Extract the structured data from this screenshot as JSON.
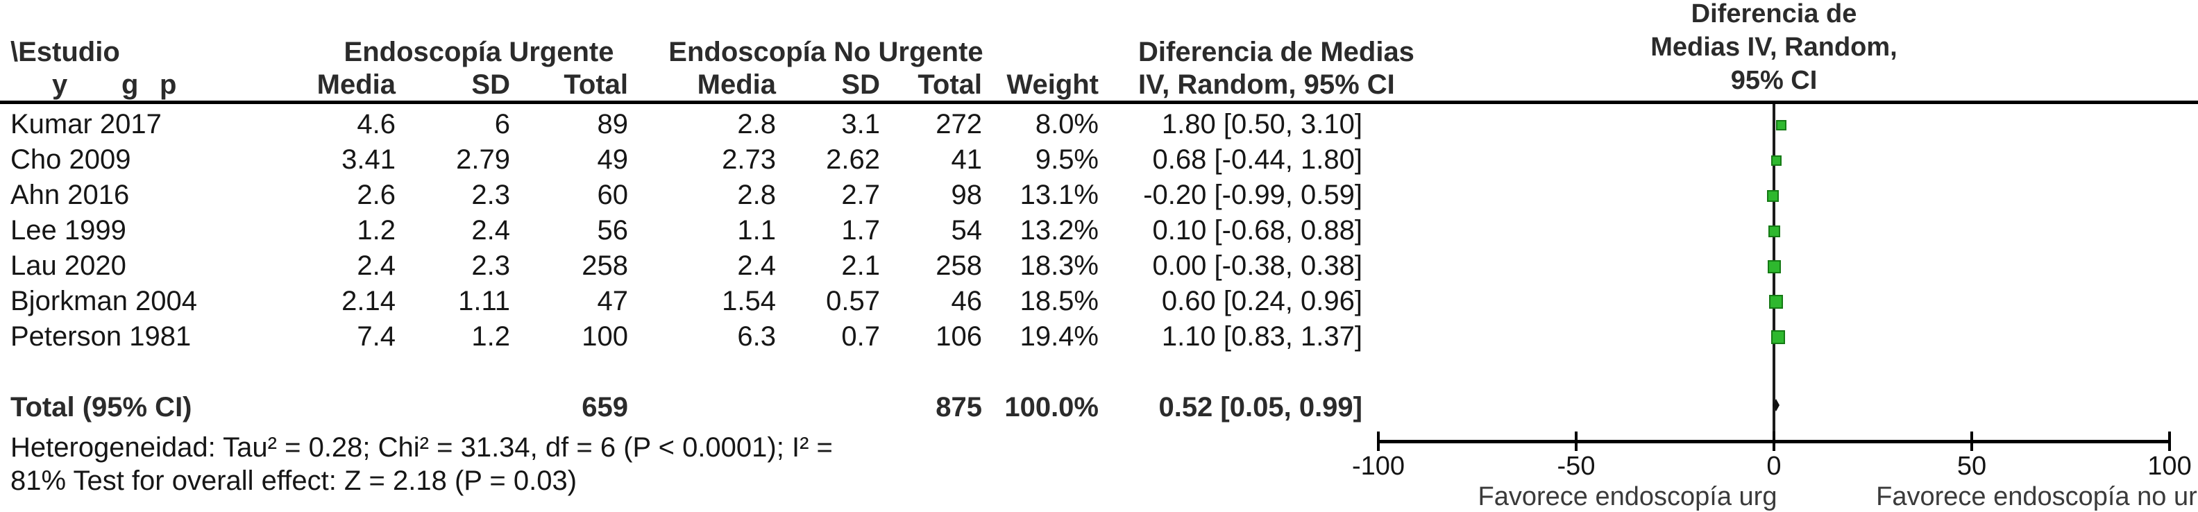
{
  "table": {
    "headers": {
      "estudio_line1": "\\Estudio",
      "estudio_sub_y": "y",
      "estudio_sub_g": "g",
      "estudio_sub_p": "p",
      "group_urgente": "Endoscopía Urgente",
      "group_no_urgente": "Endoscopía No Urgente",
      "media": "Media",
      "sd": "SD",
      "total": "Total",
      "weight": "Weight",
      "effect_line1": "Diferencia de Medias",
      "effect_line2": "IV, Random, 95% CI"
    },
    "rows": [
      {
        "study": "Kumar 2017",
        "urg_media": "4.6",
        "urg_sd": "6",
        "urg_total": "89",
        "no_media": "2.8",
        "no_sd": "3.1",
        "no_total": "272",
        "weight": "8.0%",
        "ci": "1.80 [0.50, 3.10]"
      },
      {
        "study": "Cho 2009",
        "urg_media": "3.41",
        "urg_sd": "2.79",
        "urg_total": "49",
        "no_media": "2.73",
        "no_sd": "2.62",
        "no_total": "41",
        "weight": "9.5%",
        "ci": "0.68 [-0.44, 1.80]"
      },
      {
        "study": "Ahn 2016",
        "urg_media": "2.6",
        "urg_sd": "2.3",
        "urg_total": "60",
        "no_media": "2.8",
        "no_sd": "2.7",
        "no_total": "98",
        "weight": "13.1%",
        "ci": "-0.20 [-0.99, 0.59]"
      },
      {
        "study": "Lee 1999",
        "urg_media": "1.2",
        "urg_sd": "2.4",
        "urg_total": "56",
        "no_media": "1.1",
        "no_sd": "1.7",
        "no_total": "54",
        "weight": "13.2%",
        "ci": "0.10 [-0.68, 0.88]"
      },
      {
        "study": "Lau 2020",
        "urg_media": "2.4",
        "urg_sd": "2.3",
        "urg_total": "258",
        "no_media": "2.4",
        "no_sd": "2.1",
        "no_total": "258",
        "weight": "18.3%",
        "ci": "0.00 [-0.38, 0.38]"
      },
      {
        "study": "Bjorkman 2004",
        "urg_media": "2.14",
        "urg_sd": "1.11",
        "urg_total": "47",
        "no_media": "1.54",
        "no_sd": "0.57",
        "no_total": "46",
        "weight": "18.5%",
        "ci": "0.60 [0.24, 0.96]"
      },
      {
        "study": "Peterson 1981",
        "urg_media": "7.4",
        "urg_sd": "1.2",
        "urg_total": "100",
        "no_media": "6.3",
        "no_sd": "0.7",
        "no_total": "106",
        "weight": "19.4%",
        "ci": "1.10 [0.83, 1.37]"
      }
    ],
    "total_row": {
      "label": "Total (95% CI)",
      "urg_total": "659",
      "no_total": "875",
      "weight": "100.0%",
      "ci": "0.52 [0.05, 0.99]"
    },
    "footnote_line1": "Heterogeneidad: Tau² = 0.28; Chi² = 31.34, df = 6 (P < 0.0001); I² =",
    "footnote_line2": "81% Test for overall effect: Z = 2.18 (P = 0.03)"
  },
  "plot": {
    "header_line1": "Diferencia de",
    "header_line2": "Medias IV, Random,",
    "header_line3": "95% CI",
    "favors_left": "Favorece endoscopía urg",
    "favors_right": "Favorece endoscopía no urg"
  },
  "chart_data": {
    "type": "forest",
    "title": "Diferencia de Medias IV, Random, 95% CI",
    "x_axis": {
      "min": -100,
      "max": 100,
      "ticks": [
        -100,
        -50,
        0,
        50,
        100
      ]
    },
    "studies": [
      {
        "name": "Kumar 2017",
        "md": 1.8,
        "ci_low": 0.5,
        "ci_high": 3.1,
        "weight_pct": 8.0
      },
      {
        "name": "Cho 2009",
        "md": 0.68,
        "ci_low": -0.44,
        "ci_high": 1.8,
        "weight_pct": 9.5
      },
      {
        "name": "Ahn 2016",
        "md": -0.2,
        "ci_low": -0.99,
        "ci_high": 0.59,
        "weight_pct": 13.1
      },
      {
        "name": "Lee 1999",
        "md": 0.1,
        "ci_low": -0.68,
        "ci_high": 0.88,
        "weight_pct": 13.2
      },
      {
        "name": "Lau 2020",
        "md": 0.0,
        "ci_low": -0.38,
        "ci_high": 0.38,
        "weight_pct": 18.3
      },
      {
        "name": "Bjorkman 2004",
        "md": 0.6,
        "ci_low": 0.24,
        "ci_high": 0.96,
        "weight_pct": 18.5
      },
      {
        "name": "Peterson 1981",
        "md": 1.1,
        "ci_low": 0.83,
        "ci_high": 1.37,
        "weight_pct": 19.4
      }
    ],
    "total": {
      "md": 0.52,
      "ci_low": 0.05,
      "ci_high": 0.99,
      "weight_pct": 100.0
    },
    "colors": {
      "marker_fill": "#2eb82e",
      "marker_border": "#157a15",
      "line": "#1b1b1b"
    }
  }
}
